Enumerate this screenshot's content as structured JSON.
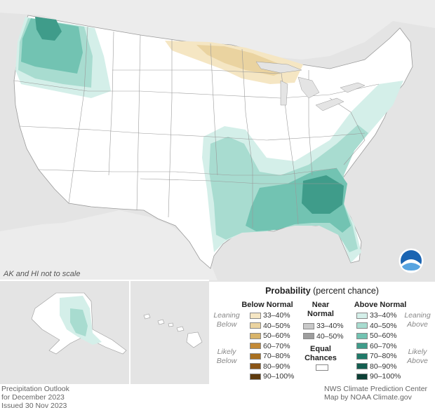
{
  "map": {
    "scale_note": "AK and HI not to scale",
    "logo": "noaa-logo"
  },
  "legend": {
    "title_bold": "Probability",
    "title_rest": " (percent chance)",
    "below": {
      "header": "Below Normal",
      "items": [
        "33–40%",
        "40–50%",
        "50–60%",
        "60–70%",
        "70–80%",
        "80–90%",
        "90–100%"
      ],
      "colors": [
        "#f5e6c3",
        "#ead3a0",
        "#d8b46a",
        "#c38a37",
        "#a9701f",
        "#8a5516",
        "#5e3a0d"
      ]
    },
    "near": {
      "header_line1": "Near",
      "header_line2": "Normal",
      "items": [
        "33–40%",
        "40–50%"
      ],
      "colors": [
        "#c9c9c9",
        "#9e9e9e"
      ]
    },
    "equal": {
      "line1": "Equal",
      "line2": "Chances",
      "color": "#ffffff"
    },
    "above": {
      "header": "Above Normal",
      "items": [
        "33–40%",
        "40–50%",
        "50–60%",
        "60–70%",
        "70–80%",
        "80–90%",
        "90–100%"
      ],
      "colors": [
        "#d4efe9",
        "#a8dcd0",
        "#72c3b2",
        "#3f9c8a",
        "#1f7a69",
        "#135e50",
        "#0b3f35"
      ]
    },
    "leaning_below": {
      "line1": "Leaning",
      "line2": "Below"
    },
    "likely_below": {
      "line1": "Likely",
      "line2": "Below"
    },
    "leaning_above": {
      "line1": "Leaning",
      "line2": "Above"
    },
    "likely_above": {
      "line1": "Likely",
      "line2": "Above"
    }
  },
  "footer_left": {
    "line1": "Precipitation Outlook",
    "line2": "for December 2023",
    "line3": "Issued 30 Nov 2023"
  },
  "footer_right": {
    "line1": "NWS Climate Prediction Center",
    "line2": "Map by NOAA Climate.gov"
  }
}
